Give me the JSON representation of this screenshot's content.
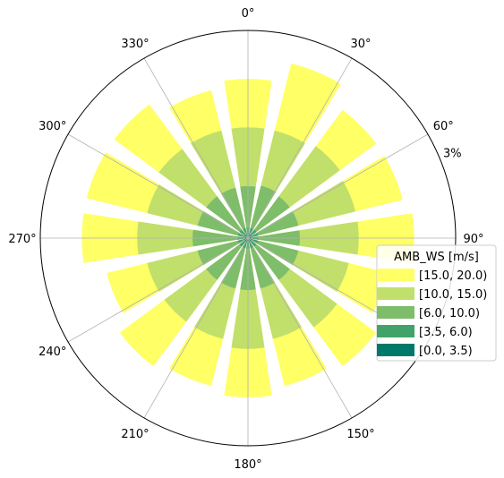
{
  "chart_data": {
    "type": "windrose",
    "directions": [
      0,
      22.5,
      45,
      67.5,
      90,
      112.5,
      135,
      157.5,
      180,
      202.5,
      225,
      247.5,
      270,
      292.5,
      315,
      337.5
    ],
    "angle_tick_labels": [
      "0°",
      "30°",
      "60°",
      "90°",
      "150°",
      "180°",
      "210°",
      "240°",
      "270°",
      "300°",
      "330°"
    ],
    "radial_tick_label": "3%",
    "radial_tick_value": 3.0,
    "rmax": 3.0,
    "grid": true,
    "legend": {
      "title": "AMB_WS [m/s]",
      "placement": "right"
    },
    "series": [
      {
        "name": "[0.0, 3.5)",
        "color": "#00796b",
        "cumulative_pct": [
          0.05,
          0.05,
          0.05,
          0.05,
          0.05,
          0.05,
          0.05,
          0.05,
          0.05,
          0.05,
          0.05,
          0.05,
          0.05,
          0.05,
          0.05,
          0.05
        ]
      },
      {
        "name": "[3.5, 6.0)",
        "color": "#42a36a",
        "cumulative_pct": [
          0.15,
          0.15,
          0.15,
          0.15,
          0.15,
          0.15,
          0.15,
          0.15,
          0.15,
          0.15,
          0.15,
          0.15,
          0.15,
          0.15,
          0.15,
          0.15
        ]
      },
      {
        "name": "[6.0, 10.0)",
        "color": "#7ebd6a",
        "cumulative_pct": [
          0.75,
          0.78,
          0.75,
          0.75,
          0.75,
          0.75,
          0.75,
          0.75,
          0.75,
          0.75,
          0.75,
          0.75,
          0.8,
          0.75,
          0.75,
          0.75
        ]
      },
      {
        "name": "[10.0, 15.0)",
        "color": "#c1df6b",
        "cumulative_pct": [
          1.6,
          1.6,
          1.65,
          1.6,
          1.6,
          1.5,
          1.6,
          1.5,
          1.6,
          1.5,
          1.5,
          1.5,
          1.6,
          1.5,
          1.6,
          1.6
        ]
      },
      {
        "name": "[15.0, 20.0)",
        "color": "#ffff66",
        "cumulative_pct": [
          2.3,
          2.6,
          2.3,
          2.3,
          2.4,
          2.1,
          2.3,
          2.2,
          2.3,
          2.2,
          2.3,
          2.1,
          2.4,
          2.4,
          2.4,
          2.2
        ]
      }
    ]
  }
}
